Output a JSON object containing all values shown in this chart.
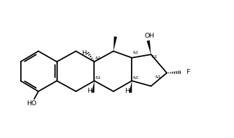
{
  "bg_color": "#ffffff",
  "line_color": "#000000",
  "fig_width": 3.36,
  "fig_height": 1.98,
  "dpi": 100,
  "xlim": [
    0,
    16.8
  ],
  "ylim": [
    0,
    9.9
  ]
}
